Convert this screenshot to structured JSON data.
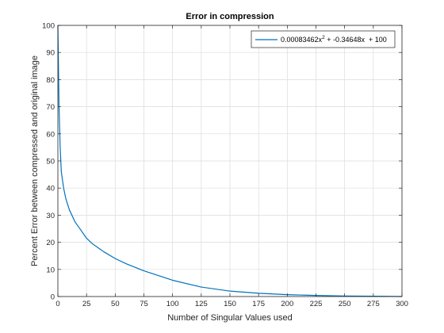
{
  "chart_data": {
    "type": "line",
    "title": "Error in compression",
    "xlabel": "Number of Singular Values used",
    "ylabel": "Percent Error between compressed and original image",
    "xlim": [
      0,
      300
    ],
    "ylim": [
      0,
      100
    ],
    "xticks": [
      0,
      25,
      50,
      75,
      100,
      125,
      150,
      175,
      200,
      225,
      250,
      275,
      300
    ],
    "yticks": [
      0,
      10,
      20,
      30,
      40,
      50,
      60,
      70,
      80,
      90,
      100
    ],
    "grid": true,
    "legend_position": "top-right",
    "series": [
      {
        "name": "0.00083462x² + -0.34648x + 100",
        "color": "#0072bd",
        "x": [
          0,
          1,
          2,
          3,
          5,
          7,
          10,
          15,
          20,
          25,
          30,
          40,
          50,
          60,
          75,
          100,
          125,
          150,
          175,
          200,
          225,
          250,
          275,
          300
        ],
        "y": [
          100,
          70,
          55,
          46,
          40,
          36,
          32,
          27.5,
          24.5,
          21.5,
          19.5,
          16.5,
          14,
          12,
          9.5,
          6,
          3.5,
          2,
          1.2,
          0.7,
          0.4,
          0.2,
          0.1,
          0
        ]
      }
    ]
  },
  "legend": {
    "coef_a": "0.00083462x",
    "exp": "2",
    "rest": " + -0.34648x  + 100"
  }
}
